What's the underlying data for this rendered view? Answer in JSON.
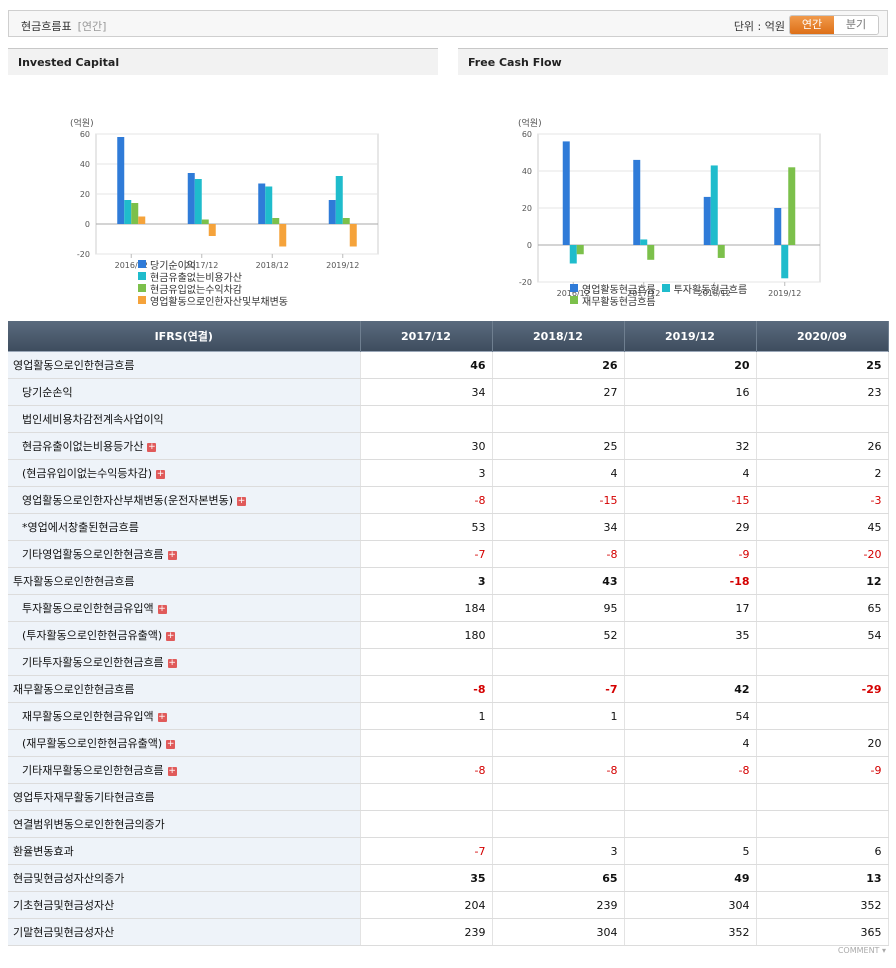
{
  "header": {
    "title": "현금흐름표",
    "subtitle": "[연간]",
    "unit_label": "단위 : 억원",
    "period_annual": "연간",
    "period_quarter": "분기"
  },
  "chart_data": [
    {
      "type": "bar",
      "title": "Invested Capital",
      "ylabel": "(억원)",
      "ylim": [
        -20,
        60
      ],
      "yticks": [
        "60",
        "40",
        "20",
        "0",
        "-20"
      ],
      "categories": [
        "2016/12",
        "2017/12",
        "2018/12",
        "2019/12"
      ],
      "series": [
        {
          "name": "당기순이익",
          "color": "#2f7bd8",
          "values": [
            58,
            34,
            27,
            16
          ]
        },
        {
          "name": "현금유출없는비용가산",
          "color": "#1fbccc",
          "values": [
            16,
            30,
            25,
            32
          ]
        },
        {
          "name": "현금유입없는수익차감",
          "color": "#7cc04b",
          "values": [
            14,
            3,
            4,
            4
          ]
        },
        {
          "name": "영업활동으로인한자산및부채변동",
          "color": "#f5a33b",
          "values": [
            5,
            -8,
            -15,
            -15
          ]
        }
      ]
    },
    {
      "type": "bar",
      "title": "Free Cash Flow",
      "ylabel": "(억원)",
      "ylim": [
        -20,
        60
      ],
      "yticks": [
        "60",
        "40",
        "20",
        "0",
        "-20"
      ],
      "categories": [
        "2016/12",
        "2017/12",
        "2018/12",
        "2019/12"
      ],
      "series": [
        {
          "name": "영업활동현금흐름",
          "color": "#2f7bd8",
          "values": [
            56,
            46,
            26,
            20
          ]
        },
        {
          "name": "투자활동현금흐름",
          "color": "#1fbccc",
          "values": [
            -10,
            3,
            43,
            -18
          ]
        },
        {
          "name": "재무활동현금흐름",
          "color": "#7cc04b",
          "values": [
            -5,
            -8,
            -7,
            42
          ]
        }
      ]
    }
  ],
  "table": {
    "header_label": "IFRS(연결)",
    "periods": [
      "2017/12",
      "2018/12",
      "2019/12",
      "2020/09"
    ],
    "rows": [
      {
        "label": "영업활동으로인한현금흐름",
        "level": 0,
        "major": true,
        "expand": false,
        "values": [
          "46",
          "26",
          "20",
          "25"
        ]
      },
      {
        "label": "당기순손익",
        "level": 1,
        "major": false,
        "expand": false,
        "values": [
          "34",
          "27",
          "16",
          "23"
        ]
      },
      {
        "label": "법인세비용차감전계속사업이익",
        "level": 1,
        "major": false,
        "expand": false,
        "values": [
          "",
          "",
          "",
          ""
        ]
      },
      {
        "label": "현금유출이없는비용등가산",
        "level": 1,
        "major": false,
        "expand": true,
        "values": [
          "30",
          "25",
          "32",
          "26"
        ]
      },
      {
        "label": "(현금유입이없는수익등차감)",
        "level": 1,
        "major": false,
        "expand": true,
        "values": [
          "3",
          "4",
          "4",
          "2"
        ]
      },
      {
        "label": "영업활동으로인한자산부채변동(운전자본변동)",
        "level": 1,
        "major": false,
        "expand": true,
        "values": [
          "-8",
          "-15",
          "-15",
          "-3"
        ]
      },
      {
        "label": "*영업에서창출된현금흐름",
        "level": 1,
        "major": false,
        "expand": false,
        "values": [
          "53",
          "34",
          "29",
          "45"
        ]
      },
      {
        "label": "기타영업활동으로인한현금흐름",
        "level": 1,
        "major": false,
        "expand": true,
        "values": [
          "-7",
          "-8",
          "-9",
          "-20"
        ]
      },
      {
        "label": "투자활동으로인한현금흐름",
        "level": 0,
        "major": true,
        "expand": false,
        "values": [
          "3",
          "43",
          "-18",
          "12"
        ]
      },
      {
        "label": "투자활동으로인한현금유입액",
        "level": 1,
        "major": false,
        "expand": true,
        "values": [
          "184",
          "95",
          "17",
          "65"
        ]
      },
      {
        "label": "(투자활동으로인한현금유출액)",
        "level": 1,
        "major": false,
        "expand": true,
        "values": [
          "180",
          "52",
          "35",
          "54"
        ]
      },
      {
        "label": "기타투자활동으로인한현금흐름",
        "level": 1,
        "major": false,
        "expand": true,
        "values": [
          "",
          "",
          "",
          ""
        ]
      },
      {
        "label": "재무활동으로인한현금흐름",
        "level": 0,
        "major": true,
        "expand": false,
        "values": [
          "-8",
          "-7",
          "42",
          "-29"
        ]
      },
      {
        "label": "재무활동으로인한현금유입액",
        "level": 1,
        "major": false,
        "expand": true,
        "values": [
          "1",
          "1",
          "54",
          ""
        ]
      },
      {
        "label": "(재무활동으로인한현금유출액)",
        "level": 1,
        "major": false,
        "expand": true,
        "values": [
          "",
          "",
          "4",
          "20"
        ]
      },
      {
        "label": "기타재무활동으로인한현금흐름",
        "level": 1,
        "major": false,
        "expand": true,
        "values": [
          "-8",
          "-8",
          "-8",
          "-9"
        ]
      },
      {
        "label": "영업투자재무활동기타현금흐름",
        "level": 0,
        "major": true,
        "expand": false,
        "values": [
          "",
          "",
          "",
          ""
        ]
      },
      {
        "label": "연결범위변동으로인한현금의증가",
        "level": 0,
        "major": true,
        "expand": false,
        "values": [
          "",
          "",
          "",
          ""
        ]
      },
      {
        "label": "환율변동효과",
        "level": 0,
        "major": true,
        "expand": false,
        "bold": false,
        "values": [
          "-7",
          "3",
          "5",
          "6"
        ]
      },
      {
        "label": "현금및현금성자산의증가",
        "level": 0,
        "major": true,
        "expand": false,
        "values": [
          "35",
          "65",
          "49",
          "13"
        ]
      },
      {
        "label": "기초현금및현금성자산",
        "level": 0,
        "major": true,
        "expand": false,
        "bold": false,
        "values": [
          "204",
          "239",
          "304",
          "352"
        ]
      },
      {
        "label": "기말현금및현금성자산",
        "level": 0,
        "major": true,
        "expand": false,
        "bold": false,
        "values": [
          "239",
          "304",
          "352",
          "365"
        ]
      }
    ]
  },
  "footer": {
    "comment": "COMMENT ▾"
  }
}
